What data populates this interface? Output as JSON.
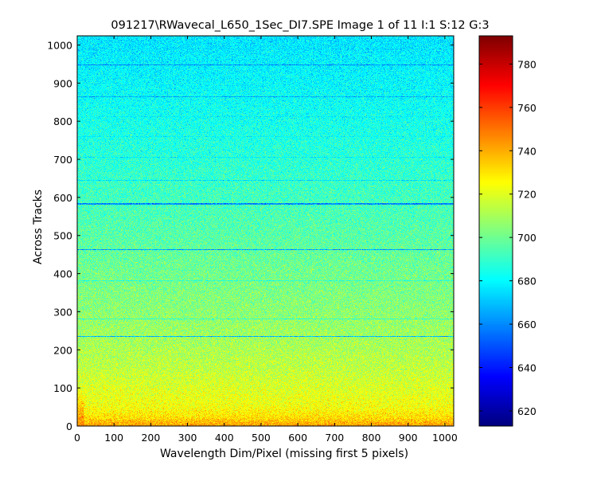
{
  "window": {
    "background": "#ffffff"
  },
  "chart_data": {
    "type": "heatmap",
    "title": "091217\\RWavecal_L650_1Sec_DI7.SPE  Image 1 of 11  I:1  S:12  G:3",
    "xlabel": "Wavelength Dim/Pixel (missing first 5 pixels)",
    "ylabel": "Across Tracks",
    "xlim": [
      0,
      1024
    ],
    "ylim": [
      0,
      1024
    ],
    "x_ticks": [
      0,
      100,
      200,
      300,
      400,
      500,
      600,
      700,
      800,
      900,
      1000
    ],
    "y_ticks": [
      0,
      100,
      200,
      300,
      400,
      500,
      600,
      700,
      800,
      900,
      1000
    ],
    "colorbar": {
      "colormap": "jet",
      "range": [
        613,
        793
      ],
      "ticks": [
        620,
        640,
        660,
        680,
        700,
        720,
        740,
        760,
        780
      ]
    },
    "value_profile_by_track": [
      {
        "track": 0,
        "value": 737
      },
      {
        "track": 50,
        "value": 724
      },
      {
        "track": 150,
        "value": 714
      },
      {
        "track": 300,
        "value": 705
      },
      {
        "track": 500,
        "value": 696
      },
      {
        "track": 700,
        "value": 688
      },
      {
        "track": 900,
        "value": 680
      },
      {
        "track": 1024,
        "value": 676
      }
    ],
    "noise_amplitude": 9,
    "dark_lines": [
      {
        "track": 235,
        "value": 668
      },
      {
        "track": 462,
        "value": 663
      },
      {
        "track": 583,
        "value": 660
      },
      {
        "track": 865,
        "value": 666
      },
      {
        "track": 948,
        "value": 660
      }
    ],
    "faint_lines": [
      {
        "track": 282,
        "value": 690
      },
      {
        "track": 382,
        "value": 688
      },
      {
        "track": 645,
        "value": 676
      },
      {
        "track": 705,
        "value": 678
      },
      {
        "track": 760,
        "value": 680
      },
      {
        "track": 812,
        "value": 678
      },
      {
        "track": 990,
        "value": 674
      }
    ],
    "hot_corners": [
      {
        "x_range": [
          0,
          20
        ],
        "track_range": [
          0,
          100
        ],
        "value": 745
      },
      {
        "x_range": [
          0,
          1024
        ],
        "track_range": [
          0,
          20
        ],
        "value": 742
      }
    ],
    "grid": false,
    "legend": "none"
  }
}
